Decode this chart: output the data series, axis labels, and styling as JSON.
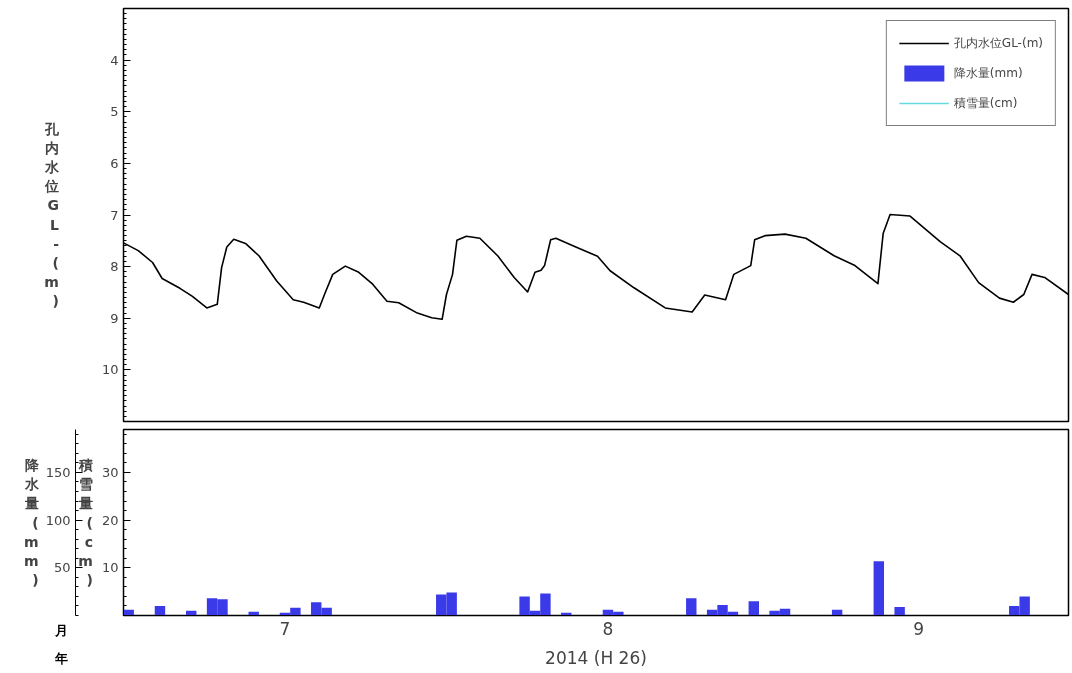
{
  "chart_data": [
    {
      "type": "line",
      "ylabel": "孔内水位GL-(m)",
      "xlim": [
        "2014-07-01",
        "2014-09-29T17:00"
      ],
      "ylim": [
        11,
        3
      ],
      "yticks": [
        4,
        5,
        6,
        7,
        8,
        9,
        10
      ],
      "tick_labels": "y",
      "grid": false,
      "legend": "top right",
      "series": [
        {
          "name": "孔内水位GL-(m)",
          "color": "#000000",
          "x": [
            "2014-07-01T00:00",
            "2014-07-02T10:00",
            "2014-07-03T19:00",
            "2014-07-04T17:00",
            "2014-07-06T10:00",
            "2014-07-07T14:00",
            "2014-07-09T00:00",
            "2014-07-10T00:00",
            "2014-07-10T10:00",
            "2014-07-10T22:00",
            "2014-07-11T14:00",
            "2014-07-12T17:00",
            "2014-07-14T00:00",
            "2014-07-15T17:00",
            "2014-07-17T07:00",
            "2014-07-18T07:00",
            "2014-07-19T19:00",
            "2014-07-20T07:00",
            "2014-07-21T02:00",
            "2014-07-22T07:00",
            "2014-07-23T14:00",
            "2014-07-24T22:00",
            "2014-07-26T07:00",
            "2014-07-27T10:00",
            "2014-07-29T05:00",
            "2014-07-30T14:00",
            "2014-07-31T14:00",
            "2014-08-01T00:00",
            "2014-08-01T14:00",
            "2014-08-02T00:00",
            "2014-08-02T22:00",
            "2014-08-04T05:00",
            "2014-08-05T22:00",
            "2014-08-07T12:00",
            "2014-08-08T19:00",
            "2014-08-09T12:00",
            "2014-08-10T02:00",
            "2014-08-10T10:00",
            "2014-08-11T00:00",
            "2014-08-11T12:00",
            "2014-08-13T10:00",
            "2014-08-15T12:00",
            "2014-08-16T17:00",
            "2014-08-19T00:00",
            "2014-08-22T00:00",
            "2014-08-24T14:00",
            "2014-08-25T19:00",
            "2014-08-27T19:00",
            "2014-08-28T14:00",
            "2014-08-30T05:00",
            "2014-08-30T14:00",
            "2014-08-31T14:00",
            "2014-09-02T12:00",
            "2014-09-04T12:00",
            "2014-09-07T05:00",
            "2014-09-09T05:00",
            "2014-09-11T10:00",
            "2014-09-11T22:00",
            "2014-09-12T14:00",
            "2014-09-14T12:00",
            "2014-09-17T10:00",
            "2014-09-19T07:00",
            "2014-09-21T02:00",
            "2014-09-23T02:00",
            "2014-09-24T10:00",
            "2014-09-25T10:00",
            "2014-09-26T05:00",
            "2014-09-27T10:00",
            "2014-09-29T17:00"
          ],
          "values": [
            7.54,
            7.69,
            7.92,
            8.23,
            8.42,
            8.57,
            8.8,
            8.73,
            8.02,
            7.62,
            7.47,
            7.55,
            7.79,
            8.28,
            8.64,
            8.69,
            8.8,
            8.54,
            8.15,
            7.99,
            8.11,
            8.34,
            8.67,
            8.7,
            8.9,
            8.99,
            9.02,
            8.54,
            8.15,
            7.49,
            7.41,
            7.45,
            7.79,
            8.21,
            8.49,
            8.11,
            8.07,
            7.98,
            7.48,
            7.45,
            7.62,
            7.8,
            8.08,
            8.41,
            8.8,
            8.88,
            8.55,
            8.64,
            8.15,
            7.98,
            7.48,
            7.4,
            7.37,
            7.45,
            7.79,
            7.98,
            8.33,
            7.36,
            6.99,
            7.02,
            7.52,
            7.79,
            8.31,
            8.61,
            8.69,
            8.54,
            8.15,
            8.21,
            8.54
          ]
        }
      ]
    },
    {
      "type": "bar",
      "ylabel": "降水量(mm)",
      "y2label": "積雪量(cm)",
      "xlabel": "2014 (H 26)",
      "xlim": [
        "2014-07-01",
        "2014-09-29T17:00"
      ],
      "ylim": [
        0,
        195
      ],
      "yticks": [
        50,
        100,
        150
      ],
      "y2lim": [
        0,
        39
      ],
      "y2ticks": [
        10,
        20,
        30
      ],
      "xticks": [
        {
          "value": "2014-07-16T12:00",
          "label": "7"
        },
        {
          "value": "2014-08-16T12:00",
          "label": "8"
        },
        {
          "value": "2014-09-15T08:00",
          "label": "9"
        }
      ],
      "grid": false,
      "annotations": [
        "月",
        "年"
      ],
      "series": [
        {
          "name": "降水量(mm)",
          "type": "bar",
          "color": "#3a3ae8",
          "x": [
            "2014-07-01T12:00",
            "2014-07-04T12:00",
            "2014-07-07T12:00",
            "2014-07-09T12:00",
            "2014-07-10T12:00",
            "2014-07-13T12:00",
            "2014-07-16T12:00",
            "2014-07-17T12:00",
            "2014-07-19T12:00",
            "2014-07-20T12:00",
            "2014-07-31T12:00",
            "2014-08-01T12:00",
            "2014-08-08T12:00",
            "2014-08-09T12:00",
            "2014-08-10T12:00",
            "2014-08-12T12:00",
            "2014-08-16T12:00",
            "2014-08-17T12:00",
            "2014-08-24T12:00",
            "2014-08-26T12:00",
            "2014-08-27T12:00",
            "2014-08-28T12:00",
            "2014-08-30T12:00",
            "2014-09-01T12:00",
            "2014-09-02T12:00",
            "2014-09-07T12:00",
            "2014-09-11T12:00",
            "2014-09-13T12:00",
            "2014-09-24T12:00",
            "2014-09-25T12:00"
          ],
          "values": [
            6,
            10,
            5,
            18,
            17,
            4,
            3,
            8,
            14,
            8,
            22,
            24,
            20,
            5,
            23,
            3,
            6,
            4,
            18,
            6,
            11,
            4,
            15,
            5,
            7,
            6,
            57,
            9,
            10,
            20
          ]
        },
        {
          "name": "積雪量(cm)",
          "type": "line",
          "color": "#66d9e0"
        }
      ]
    }
  ]
}
